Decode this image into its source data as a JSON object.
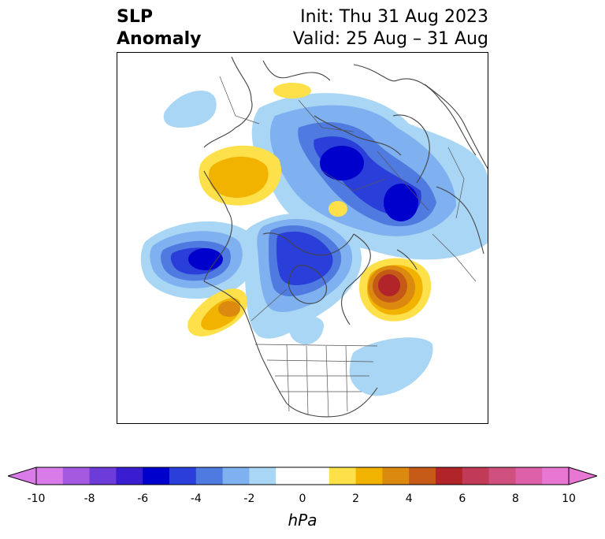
{
  "title": {
    "left_line1": "SLP",
    "left_line2": "Anomaly",
    "right_line1": "Init: Thu 31 Aug 2023",
    "right_line2": "Valid: 25 Aug – 31 Aug"
  },
  "map": {
    "projection": "polar stereographic (North America / North Atlantic)",
    "field": "sea level pressure anomaly"
  },
  "colorbar": {
    "unit": "hPa",
    "extend": "both",
    "min": -10,
    "max": 10,
    "step": 1,
    "tick_labels": [
      "-10",
      "-8",
      "-6",
      "-4",
      "-2",
      "0",
      "2",
      "4",
      "6",
      "8",
      "10"
    ],
    "colors": [
      "#d97be8",
      "#a559e0",
      "#6c3bd9",
      "#3a1dd0",
      "#0000cc",
      "#2a3fd9",
      "#4f7ae0",
      "#7fb0ef",
      "#a9d6f5",
      "#ffffff",
      "#ffffff",
      "#fde04a",
      "#f1b200",
      "#dc8a0f",
      "#c55a17",
      "#b0242a",
      "#c13a58",
      "#cf4f7e",
      "#dc5fa7",
      "#e876d3"
    ],
    "extend_low_color": "#d97be8",
    "extend_high_color": "#e876d3"
  }
}
